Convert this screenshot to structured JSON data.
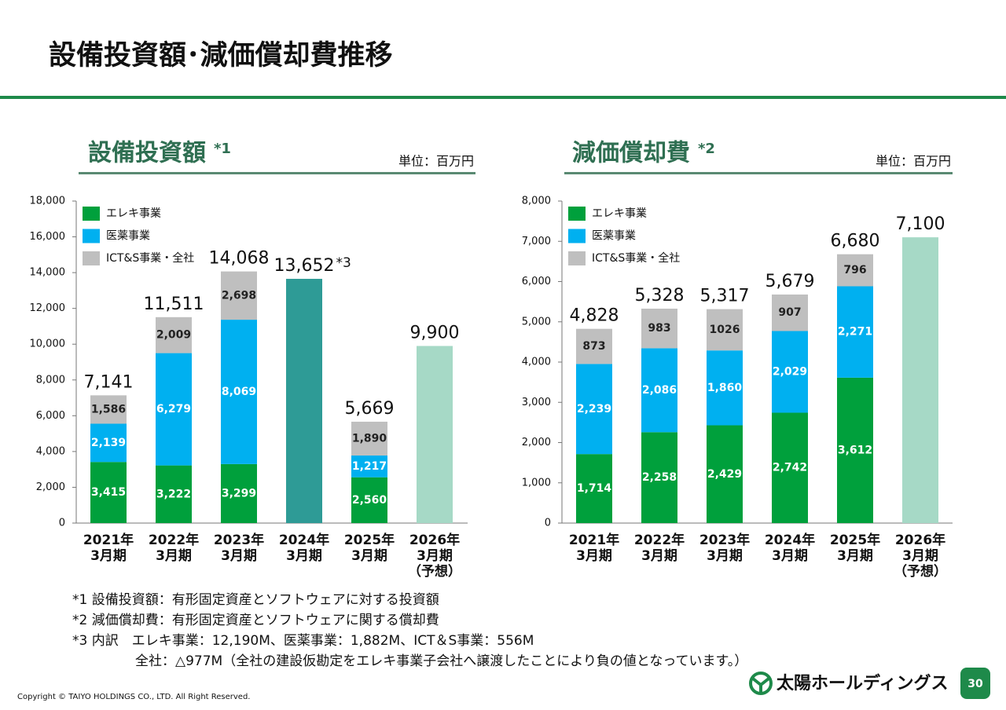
{
  "page": {
    "title": "設備投資額･減価償却費推移",
    "footnotes": [
      "*1 設備投資額：有形固定資産とソフトウェアに対する投資額",
      "*2 減価償却費：有形固定資産とソフトウェアに関する償却費",
      "*3 内訳　エレキ事業：12,190M、医薬事業：1,882M、ICT＆S事業：556M",
      "全社：△977M（全社の建設仮勘定をエレキ事業子会社へ譲渡したことにより負の値となっています。）"
    ],
    "copyright": "Copyright © TAIYO HOLDINGS CO., LTD.  All Right Reserved.",
    "logo": "太陽ホールディングス",
    "page_number": "30"
  },
  "chart_data": [
    {
      "type": "stacked_bar",
      "title": "設備投資額",
      "title_note": "*1",
      "unit": "単位：百万円",
      "categories": [
        [
          "2021年",
          "3月期"
        ],
        [
          "2022年",
          "3月期"
        ],
        [
          "2023年",
          "3月期"
        ],
        [
          "2024年",
          "3月期"
        ],
        [
          "2025年",
          "3月期"
        ],
        [
          "2026年",
          "3月期",
          "（予想）"
        ]
      ],
      "series": [
        {
          "name": "エレキ事業",
          "color": "#00a03c",
          "values": [
            3415,
            3222,
            3299,
            null,
            2560,
            null
          ],
          "value_labels": [
            "3,415",
            "3,222",
            "3,299",
            null,
            "2,560",
            null
          ]
        },
        {
          "name": "医薬事業",
          "color": "#00b0f0",
          "values": [
            2139,
            6279,
            8069,
            null,
            1217,
            null
          ],
          "value_labels": [
            "2,139",
            "6,279",
            "8,069",
            null,
            "1,217",
            null
          ]
        },
        {
          "name": "ICT&S事業・全社",
          "color": "#bfbfbf",
          "values": [
            1586,
            2009,
            2698,
            null,
            1890,
            null
          ],
          "value_labels": [
            "1,586",
            "2,009",
            "2,698",
            null,
            "1,890",
            null
          ]
        }
      ],
      "totals": {
        "values": [
          7141,
          11511,
          14068,
          13652,
          5669,
          9900
        ],
        "value_labels": [
          "7,141",
          "11,511",
          "14,068",
          "13,652",
          "5,669",
          "9,900"
        ],
        "colors": [
          null,
          null,
          null,
          "#2e9b96",
          null,
          "#a6d9c6"
        ],
        "notes": [
          null,
          null,
          null,
          "*3",
          null,
          null
        ]
      },
      "ylim": [
        0,
        18000
      ],
      "yticks": [
        0,
        {
          "value": 2000,
          "label": "2,000"
        },
        {
          "value": 4000,
          "label": "4,000"
        },
        {
          "value": 6000,
          "label": "6,000"
        },
        {
          "value": 8000,
          "label": "8,000"
        },
        {
          "value": 10000,
          "label": "10,000"
        },
        {
          "value": 12000,
          "label": "12,000"
        },
        {
          "value": 14000,
          "label": "14,000"
        },
        {
          "value": 16000,
          "label": "16,000"
        },
        {
          "value": 18000,
          "label": "18,000"
        }
      ],
      "legend": "upper left"
    },
    {
      "type": "stacked_bar",
      "title": "減価償却費",
      "title_note": "*2",
      "unit": "単位：百万円",
      "categories": [
        [
          "2021年",
          "3月期"
        ],
        [
          "2022年",
          "3月期"
        ],
        [
          "2023年",
          "3月期"
        ],
        [
          "2024年",
          "3月期"
        ],
        [
          "2025年",
          "3月期"
        ],
        [
          "2026年",
          "3月期",
          "（予想）"
        ]
      ],
      "series": [
        {
          "name": "エレキ事業",
          "color": "#00a03c",
          "values": [
            1714,
            2258,
            2429,
            2742,
            3612,
            null
          ],
          "value_labels": [
            "1,714",
            "2,258",
            "2,429",
            "2,742",
            "3,612",
            null
          ]
        },
        {
          "name": "医薬事業",
          "color": "#00b0f0",
          "values": [
            2239,
            2086,
            1860,
            2029,
            2271,
            null
          ],
          "value_labels": [
            "2,239",
            "2,086",
            "1,860",
            "2,029",
            "2,271",
            null
          ]
        },
        {
          "name": "ICT&S事業・全社",
          "color": "#bfbfbf",
          "values": [
            873,
            983,
            1026,
            907,
            796,
            null
          ]
        }
      ],
      "totals": {
        "values": [
          4828,
          5328,
          5317,
          5679,
          6680,
          7100
        ],
        "value_labels": [
          "4,828",
          "5,328",
          "5,317",
          "5,679",
          "6,680",
          "7,100"
        ],
        "colors": [
          null,
          null,
          null,
          null,
          null,
          "#a6d9c6"
        ]
      },
      "ylim": [
        0,
        8000
      ],
      "yticks": [
        0,
        {
          "value": 1000,
          "label": "1,000"
        },
        {
          "value": 2000,
          "label": "2,000"
        },
        {
          "value": 3000,
          "label": "3,000"
        },
        {
          "value": 4000,
          "label": "4,000"
        },
        {
          "value": 5000,
          "label": "5,000"
        },
        {
          "value": 6000,
          "label": "6,000"
        },
        {
          "value": 7000,
          "label": "7,000"
        },
        {
          "value": 8000,
          "label": "8,000"
        }
      ],
      "legend": "upper left"
    }
  ]
}
